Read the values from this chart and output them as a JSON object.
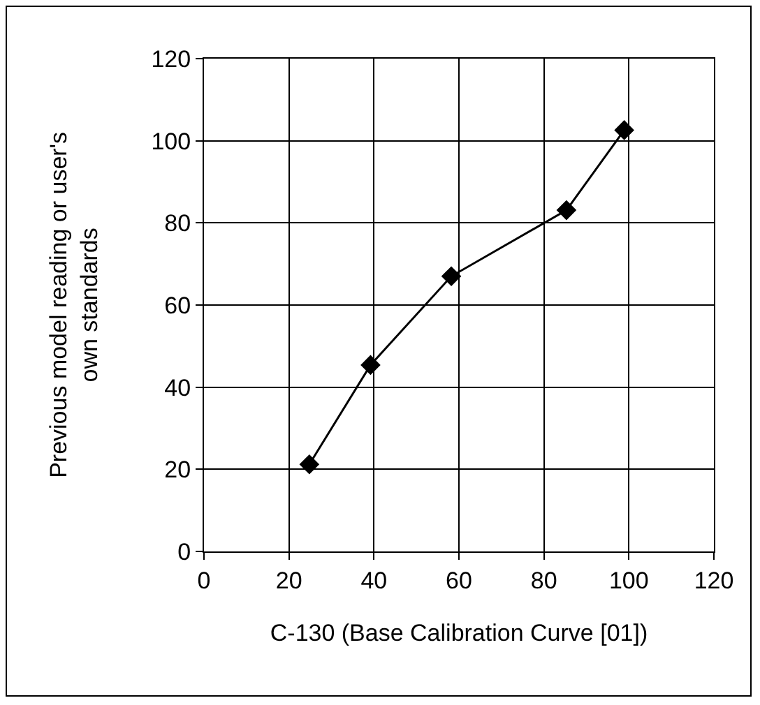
{
  "chart_data": {
    "type": "line",
    "xlabel": "C-130 (Base Calibration Curve [01])",
    "ylabel": "Previous model reading or user's own standards",
    "x": [
      24.8,
      39.2,
      58.2,
      85.3,
      98.9
    ],
    "series": [
      {
        "color": "#000000",
        "values": [
          21.2,
          45.4,
          67,
          83.1,
          102.6
        ]
      }
    ],
    "xlim": [
      0,
      120
    ],
    "xticks": [
      0,
      20,
      40,
      60,
      80,
      100,
      120
    ],
    "ylim": [
      0,
      120
    ],
    "yticks": [
      0,
      20,
      40,
      60,
      80,
      100,
      120
    ],
    "grid": true,
    "marker": "diamond",
    "line_style": "solid"
  }
}
